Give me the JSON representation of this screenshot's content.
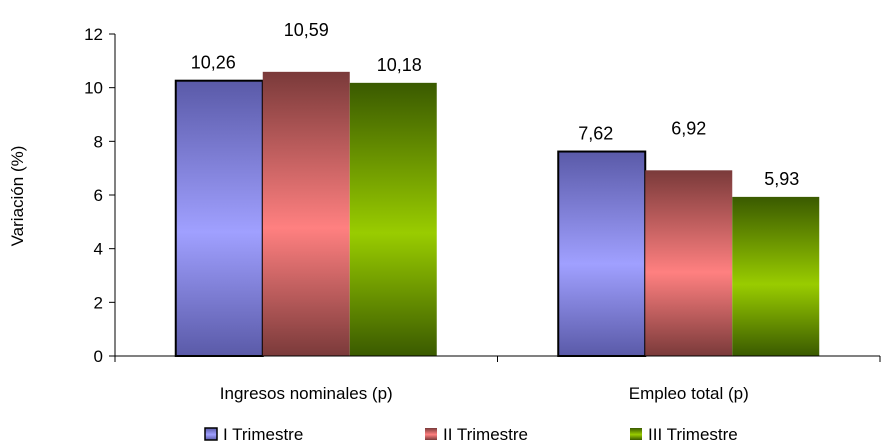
{
  "chart_data": {
    "type": "bar",
    "ylabel": "Variación (%)",
    "xlabel": "",
    "ylim": [
      0,
      12
    ],
    "yticks": [
      "0",
      "2",
      "4",
      "6",
      "8",
      "10",
      "12"
    ],
    "categories": [
      "Ingresos nominales (p)",
      "Empleo total (p)"
    ],
    "series": [
      {
        "name": "I Trimestre",
        "values": [
          10.26,
          7.62
        ],
        "labels": [
          "10,26",
          "7,62"
        ],
        "color_dark": "#5a5aa8",
        "color_light": "#a0a0ff"
      },
      {
        "name": "II Trimestre",
        "values": [
          10.59,
          6.92
        ],
        "labels": [
          "10,59",
          "6,92"
        ],
        "color_dark": "#7a3a3a",
        "color_light": "#ff8080"
      },
      {
        "name": "III Trimestre",
        "values": [
          10.18,
          5.93
        ],
        "labels": [
          "10,18",
          "5,93"
        ],
        "color_dark": "#3a5a00",
        "color_light": "#99cc00"
      }
    ],
    "grid": false,
    "legend_position": "bottom"
  }
}
